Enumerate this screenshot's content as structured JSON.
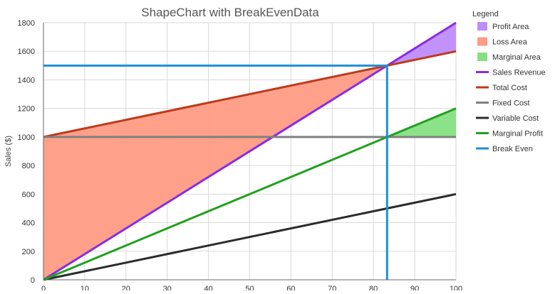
{
  "chart_data": {
    "type": "area",
    "title": "ShapeChart with BreakEvenData",
    "xlabel": "",
    "ylabel": "Sales ($)",
    "xlim": [
      0,
      100
    ],
    "ylim": [
      0,
      1800
    ],
    "x_ticks": [
      0,
      10,
      20,
      30,
      40,
      50,
      60,
      70,
      80,
      90,
      100
    ],
    "y_ticks": [
      0,
      200,
      400,
      600,
      800,
      1000,
      1200,
      1400,
      1600,
      1800
    ],
    "grid": true,
    "legend_title": "Legend",
    "legend_position": "right",
    "break_even": {
      "x": 83.3,
      "y": 1500
    },
    "areas": [
      {
        "name": "Profit Area",
        "color": "#bf8cfb",
        "x": [
          83.3,
          100,
          100
        ],
        "y": [
          1500,
          1800,
          1600
        ]
      },
      {
        "name": "Loss Area",
        "color": "#ff9c84",
        "x": [
          0,
          83.3,
          0
        ],
        "y": [
          0,
          1500,
          1000
        ]
      },
      {
        "name": "Marginal Area",
        "color": "#85e083",
        "x": [
          83.3,
          100,
          100
        ],
        "y": [
          1000,
          1200,
          1000
        ]
      }
    ],
    "series": [
      {
        "name": "Sales Revenue",
        "color": "#8a2be2",
        "x": [
          0,
          100
        ],
        "y": [
          0,
          1800
        ]
      },
      {
        "name": "Total Cost",
        "color": "#c0391b",
        "x": [
          0,
          100
        ],
        "y": [
          1000,
          1600
        ]
      },
      {
        "name": "Fixed Cost",
        "color": "#808080",
        "x": [
          0,
          100
        ],
        "y": [
          1000,
          1000
        ]
      },
      {
        "name": "Variable Cost",
        "color": "#2b2b2b",
        "x": [
          0,
          100
        ],
        "y": [
          0,
          600
        ]
      },
      {
        "name": "Marginal Profit",
        "color": "#21a01f",
        "x": [
          0,
          100
        ],
        "y": [
          0,
          1200
        ]
      },
      {
        "name": "Break Even",
        "color": "#1e8fd6",
        "x": [
          0,
          83.3,
          83.3
        ],
        "y": [
          1500,
          1500,
          0
        ]
      }
    ]
  }
}
